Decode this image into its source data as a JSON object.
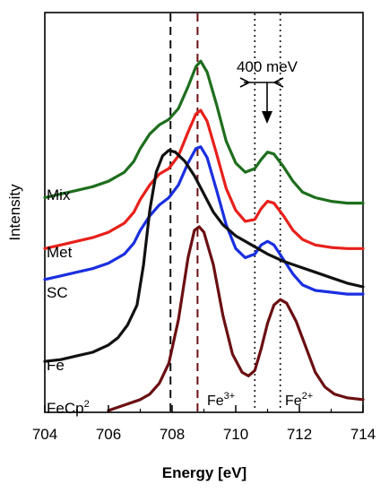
{
  "chart_data": {
    "type": "line",
    "xlabel": "Energy [eV]",
    "ylabel": "Intensity",
    "xlim": [
      704,
      714
    ],
    "xticks": [
      "704",
      "706",
      "708",
      "710",
      "712",
      "714"
    ],
    "ylim": [
      0,
      1
    ],
    "grid": false,
    "legend": "none",
    "series": [
      {
        "name": "Mix",
        "color": "#1e6e1e",
        "points": [
          [
            704.0,
            0.585
          ],
          [
            704.5,
            0.595
          ],
          [
            705.0,
            0.605
          ],
          [
            705.5,
            0.615
          ],
          [
            706.0,
            0.63
          ],
          [
            706.5,
            0.655
          ],
          [
            706.8,
            0.685
          ],
          [
            707.0,
            0.72
          ],
          [
            707.3,
            0.76
          ],
          [
            707.6,
            0.785
          ],
          [
            707.9,
            0.8
          ],
          [
            708.2,
            0.83
          ],
          [
            708.5,
            0.89
          ],
          [
            708.75,
            0.945
          ],
          [
            708.9,
            0.96
          ],
          [
            709.1,
            0.93
          ],
          [
            709.4,
            0.84
          ],
          [
            709.7,
            0.74
          ],
          [
            710.0,
            0.68
          ],
          [
            710.3,
            0.655
          ],
          [
            710.6,
            0.665
          ],
          [
            710.8,
            0.69
          ],
          [
            711.0,
            0.71
          ],
          [
            711.2,
            0.705
          ],
          [
            711.5,
            0.67
          ],
          [
            711.8,
            0.63
          ],
          [
            712.1,
            0.6
          ],
          [
            712.5,
            0.585
          ],
          [
            713.0,
            0.575
          ],
          [
            713.5,
            0.57
          ],
          [
            714.0,
            0.57
          ]
        ]
      },
      {
        "name": "Met",
        "color": "#e8201a",
        "points": [
          [
            704.0,
            0.445
          ],
          [
            704.5,
            0.455
          ],
          [
            705.0,
            0.465
          ],
          [
            705.5,
            0.475
          ],
          [
            706.0,
            0.49
          ],
          [
            706.5,
            0.515
          ],
          [
            706.8,
            0.545
          ],
          [
            707.0,
            0.58
          ],
          [
            707.3,
            0.62
          ],
          [
            707.6,
            0.65
          ],
          [
            707.9,
            0.665
          ],
          [
            708.2,
            0.7
          ],
          [
            708.5,
            0.765
          ],
          [
            708.75,
            0.815
          ],
          [
            708.9,
            0.825
          ],
          [
            709.1,
            0.795
          ],
          [
            709.4,
            0.705
          ],
          [
            709.7,
            0.61
          ],
          [
            710.0,
            0.55
          ],
          [
            710.3,
            0.52
          ],
          [
            710.6,
            0.525
          ],
          [
            710.8,
            0.555
          ],
          [
            711.0,
            0.575
          ],
          [
            711.2,
            0.57
          ],
          [
            711.5,
            0.535
          ],
          [
            711.8,
            0.495
          ],
          [
            712.1,
            0.47
          ],
          [
            712.5,
            0.455
          ],
          [
            713.0,
            0.448
          ],
          [
            713.5,
            0.445
          ],
          [
            714.0,
            0.445
          ]
        ]
      },
      {
        "name": "SC",
        "color": "#1a2fe0",
        "points": [
          [
            704.0,
            0.36
          ],
          [
            704.5,
            0.37
          ],
          [
            705.0,
            0.38
          ],
          [
            705.5,
            0.39
          ],
          [
            706.0,
            0.405
          ],
          [
            706.5,
            0.43
          ],
          [
            706.8,
            0.46
          ],
          [
            707.0,
            0.495
          ],
          [
            707.3,
            0.535
          ],
          [
            707.6,
            0.565
          ],
          [
            707.9,
            0.585
          ],
          [
            708.2,
            0.62
          ],
          [
            708.5,
            0.68
          ],
          [
            708.75,
            0.72
          ],
          [
            708.9,
            0.725
          ],
          [
            709.1,
            0.695
          ],
          [
            709.4,
            0.605
          ],
          [
            709.7,
            0.51
          ],
          [
            710.0,
            0.445
          ],
          [
            710.3,
            0.42
          ],
          [
            710.6,
            0.43
          ],
          [
            710.8,
            0.455
          ],
          [
            711.0,
            0.465
          ],
          [
            711.2,
            0.455
          ],
          [
            711.5,
            0.415
          ],
          [
            711.8,
            0.375
          ],
          [
            712.1,
            0.345
          ],
          [
            712.5,
            0.33
          ],
          [
            713.0,
            0.325
          ],
          [
            713.5,
            0.32
          ],
          [
            714.0,
            0.32
          ]
        ]
      },
      {
        "name": "Fe",
        "color": "#111111",
        "points": [
          [
            704.0,
            0.135
          ],
          [
            704.5,
            0.14
          ],
          [
            705.0,
            0.15
          ],
          [
            705.5,
            0.16
          ],
          [
            706.0,
            0.18
          ],
          [
            706.3,
            0.2
          ],
          [
            706.6,
            0.235
          ],
          [
            706.9,
            0.29
          ],
          [
            707.1,
            0.4
          ],
          [
            707.3,
            0.55
          ],
          [
            707.5,
            0.655
          ],
          [
            707.7,
            0.7
          ],
          [
            707.9,
            0.715
          ],
          [
            708.1,
            0.71
          ],
          [
            708.4,
            0.685
          ],
          [
            708.7,
            0.645
          ],
          [
            709.0,
            0.595
          ],
          [
            709.3,
            0.545
          ],
          [
            709.6,
            0.51
          ],
          [
            710.0,
            0.48
          ],
          [
            710.5,
            0.455
          ],
          [
            711.0,
            0.43
          ],
          [
            711.5,
            0.41
          ],
          [
            712.0,
            0.395
          ],
          [
            712.5,
            0.38
          ],
          [
            713.0,
            0.365
          ],
          [
            713.5,
            0.35
          ],
          [
            714.0,
            0.34
          ]
        ]
      },
      {
        "name": "FeCp²",
        "color": "#6b0f12",
        "points": [
          [
            706.0,
            0.0
          ],
          [
            706.5,
            0.015
          ],
          [
            707.0,
            0.03
          ],
          [
            707.3,
            0.045
          ],
          [
            707.6,
            0.075
          ],
          [
            707.9,
            0.13
          ],
          [
            708.2,
            0.25
          ],
          [
            708.5,
            0.42
          ],
          [
            708.7,
            0.495
          ],
          [
            708.85,
            0.505
          ],
          [
            709.0,
            0.49
          ],
          [
            709.3,
            0.4
          ],
          [
            709.6,
            0.26
          ],
          [
            709.9,
            0.155
          ],
          [
            710.2,
            0.105
          ],
          [
            710.4,
            0.095
          ],
          [
            710.6,
            0.11
          ],
          [
            710.8,
            0.17
          ],
          [
            711.0,
            0.24
          ],
          [
            711.2,
            0.29
          ],
          [
            711.4,
            0.305
          ],
          [
            711.6,
            0.295
          ],
          [
            711.9,
            0.245
          ],
          [
            712.2,
            0.175
          ],
          [
            712.5,
            0.105
          ],
          [
            712.8,
            0.065
          ],
          [
            713.1,
            0.045
          ],
          [
            713.5,
            0.035
          ],
          [
            714.0,
            0.03
          ]
        ]
      }
    ],
    "vlines": [
      {
        "x": 707.95,
        "style": "dashed",
        "color": "#111111"
      },
      {
        "x": 708.8,
        "style": "dashed",
        "color": "#6b0f12"
      },
      {
        "x": 710.6,
        "style": "dotted",
        "color": "#111111"
      },
      {
        "x": 711.4,
        "style": "dotted",
        "color": "#111111"
      }
    ],
    "annotations": {
      "separation": "400 meV",
      "fe3": {
        "base": "Fe",
        "sup": "3+"
      },
      "fe2": {
        "base": "Fe",
        "sup": "2+"
      }
    }
  }
}
